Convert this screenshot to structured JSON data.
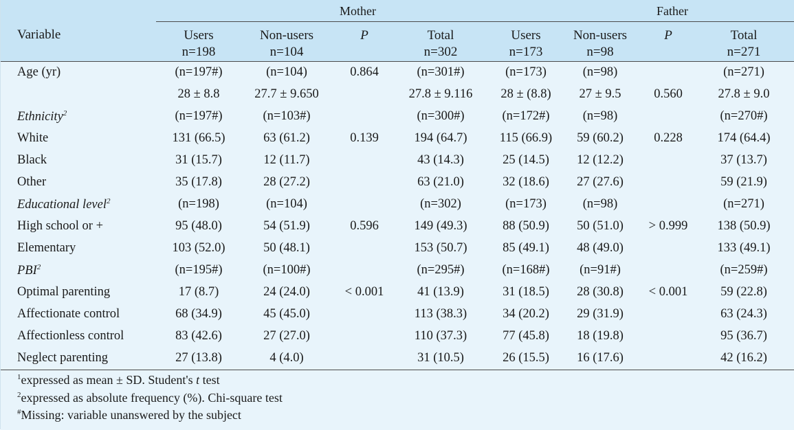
{
  "header": {
    "group_mother": "Mother",
    "group_father": "Father",
    "variable_label": "Variable",
    "columns": [
      {
        "l1": "Users",
        "l2": "n=198"
      },
      {
        "l1": "Non-users",
        "l2": "n=104"
      },
      {
        "l1": "P",
        "l2": ""
      },
      {
        "l1": "Total",
        "l2": "n=302"
      },
      {
        "l1": "Users",
        "l2": "n=173"
      },
      {
        "l1": "Non-users",
        "l2": "n=98"
      },
      {
        "l1": "P",
        "l2": ""
      },
      {
        "l1": "Total",
        "l2": "n=271"
      }
    ]
  },
  "rows": [
    {
      "label": "Age (yr)",
      "sup": "",
      "italic": false,
      "cells": [
        "(n=197#)",
        "(n=104)",
        "0.864",
        "(n=301#)",
        "(n=173)",
        "(n=98)",
        "",
        "(n=271)"
      ]
    },
    {
      "label": "",
      "sup": "",
      "italic": false,
      "cells": [
        "28 ± 8.8",
        "27.7 ± 9.650",
        "",
        "27.8 ± 9.116",
        "28 ± (8.8)",
        "27 ± 9.5",
        "0.560",
        "27.8 ± 9.0"
      ]
    },
    {
      "label": "Ethnicity",
      "sup": "2",
      "italic": true,
      "cells": [
        "(n=197#)",
        "(n=103#)",
        "",
        "(n=300#)",
        "(n=172#)",
        "(n=98)",
        "",
        "(n=270#)"
      ]
    },
    {
      "label": "White",
      "sup": "",
      "italic": false,
      "cells": [
        "131 (66.5)",
        "63 (61.2)",
        "0.139",
        "194 (64.7)",
        "115 (66.9)",
        "59 (60.2)",
        "0.228",
        "174 (64.4)"
      ]
    },
    {
      "label": "Black",
      "sup": "",
      "italic": false,
      "cells": [
        "31 (15.7)",
        "12 (11.7)",
        "",
        "43 (14.3)",
        "25 (14.5)",
        "12 (12.2)",
        "",
        "37 (13.7)"
      ]
    },
    {
      "label": "Other",
      "sup": "",
      "italic": false,
      "cells": [
        "35 (17.8)",
        "28 (27.2)",
        "",
        "63 (21.0)",
        "32 (18.6)",
        "27 (27.6)",
        "",
        "59 (21.9)"
      ]
    },
    {
      "label": "Educational level",
      "sup": "2",
      "italic": true,
      "cells": [
        "(n=198)",
        "(n=104)",
        "",
        "(n=302)",
        "(n=173)",
        "(n=98)",
        "",
        "(n=271)"
      ]
    },
    {
      "label": "High school or +",
      "sup": "",
      "italic": false,
      "cells": [
        "95 (48.0)",
        "54 (51.9)",
        "0.596",
        "149 (49.3)",
        "88 (50.9)",
        "50 (51.0)",
        "> 0.999",
        "138 (50.9)"
      ]
    },
    {
      "label": "Elementary",
      "sup": "",
      "italic": false,
      "cells": [
        "103 (52.0)",
        "50 (48.1)",
        "",
        "153 (50.7)",
        "85 (49.1)",
        "48 (49.0)",
        "",
        "133 (49.1)"
      ]
    },
    {
      "label": "PBI",
      "sup": "2",
      "italic": true,
      "cells": [
        "(n=195#)",
        "(n=100#)",
        "",
        "(n=295#)",
        "(n=168#)",
        "(n=91#)",
        "",
        "(n=259#)"
      ]
    },
    {
      "label": "Optimal parenting",
      "sup": "",
      "italic": false,
      "cells": [
        "17 (8.7)",
        "24 (24.0)",
        "< 0.001",
        "41 (13.9)",
        "31 (18.5)",
        "28 (30.8)",
        "< 0.001",
        "59 (22.8)"
      ]
    },
    {
      "label": "Affectionate control",
      "sup": "",
      "italic": false,
      "cells": [
        "68 (34.9)",
        "45 (45.0)",
        "",
        "113 (38.3)",
        "34 (20.2)",
        "29 (31.9)",
        "",
        "63 (24.3)"
      ]
    },
    {
      "label": "Affectionless control",
      "sup": "",
      "italic": false,
      "cells": [
        "83 (42.6)",
        "27 (27.0)",
        "",
        "110 (37.3)",
        "77 (45.8)",
        "18 (19.8)",
        "",
        "95 (36.7)"
      ]
    },
    {
      "label": "Neglect parenting",
      "sup": "",
      "italic": false,
      "cells": [
        "27 (13.8)",
        "4 (4.0)",
        "",
        "31 (10.5)",
        "26 (15.5)",
        "16 (17.6)",
        "",
        "42 (16.2)"
      ]
    }
  ],
  "footnotes": [
    {
      "sup": "1",
      "text": "expressed as mean ± SD. Student's t test"
    },
    {
      "sup": "2",
      "text": "expressed as absolute frequency (%). Chi-square test"
    },
    {
      "sup": "#",
      "text": "Missing: variable unanswered by the subject"
    }
  ],
  "colors": {
    "header_bg": "#c7e4f5",
    "body_bg": "#e8f4fb",
    "rule": "#4a4a4a"
  }
}
